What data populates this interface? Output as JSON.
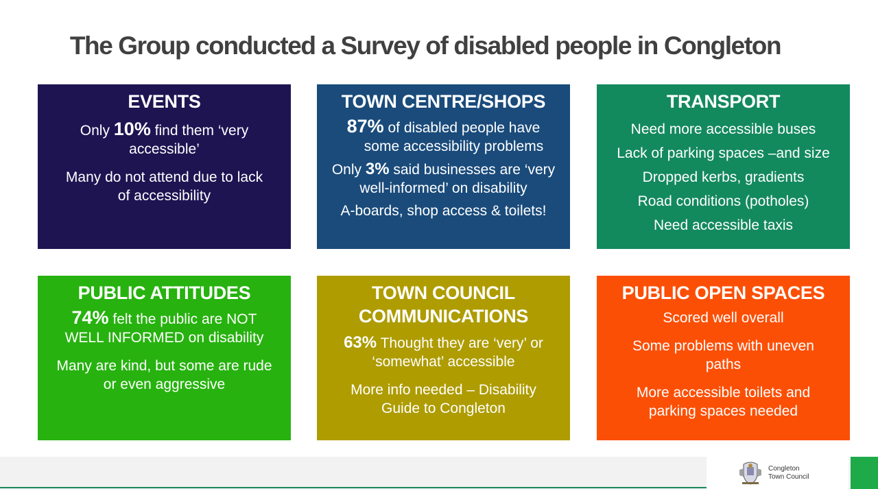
{
  "title": "The Group conducted a Survey of disabled people in Congleton",
  "colors": {
    "events": "#1e1452",
    "town": "#1a4b7b",
    "transport": "#13895e",
    "attitudes": "#27b20f",
    "communications": "#ae9c00",
    "open_spaces": "#fc4f06",
    "footer_green": "#1faa4a"
  },
  "boxes": {
    "events": {
      "heading": "EVENTS",
      "l1_pre": "Only ",
      "l1_pct": "10%",
      "l1_post": " find them ‘very",
      "l1b": "accessible’",
      "l2a": "Many do not attend due to lack",
      "l2b": "of accessibility"
    },
    "town": {
      "heading": "TOWN CENTRE/SHOPS",
      "l1_pct": "87%",
      "l1_post": " of disabled people have",
      "l1b": "some accessibility problems",
      "l2_pre": "Only ",
      "l2_pct": "3%",
      "l2_post": " said businesses are ‘very",
      "l2b": "well-informed’ on disability",
      "l3": "A-boards, shop access & toilets!"
    },
    "transport": {
      "heading": "TRANSPORT",
      "items": [
        "Need more accessible buses",
        "Lack of parking spaces –and size",
        "Dropped kerbs, gradients",
        "Road conditions (potholes)",
        "Need accessible taxis"
      ]
    },
    "attitudes": {
      "heading": "PUBLIC ATTITUDES",
      "l1_pct": "74%",
      "l1_post": " felt the public are NOT",
      "l1b": "WELL INFORMED on disability",
      "l2a": "Many are kind, but some are rude",
      "l2b": "or even aggressive"
    },
    "communications": {
      "heading_a": "TOWN COUNCIL",
      "heading_b": "COMMUNICATIONS",
      "l1_pct": "63%",
      "l1_post": " Thought they are ‘very’ or",
      "l1b": "‘somewhat’ accessible",
      "l2a": "More info needed – Disability",
      "l2b": "Guide to Congleton"
    },
    "open_spaces": {
      "heading": "PUBLIC OPEN SPACES",
      "l1": "Scored well overall",
      "l2a": "Some problems with uneven",
      "l2b": "paths",
      "l3a": "More accessible toilets and",
      "l3b": "parking spaces needed"
    }
  },
  "footer": {
    "logo_line1": "Congleton",
    "logo_line2": "Town Council"
  }
}
